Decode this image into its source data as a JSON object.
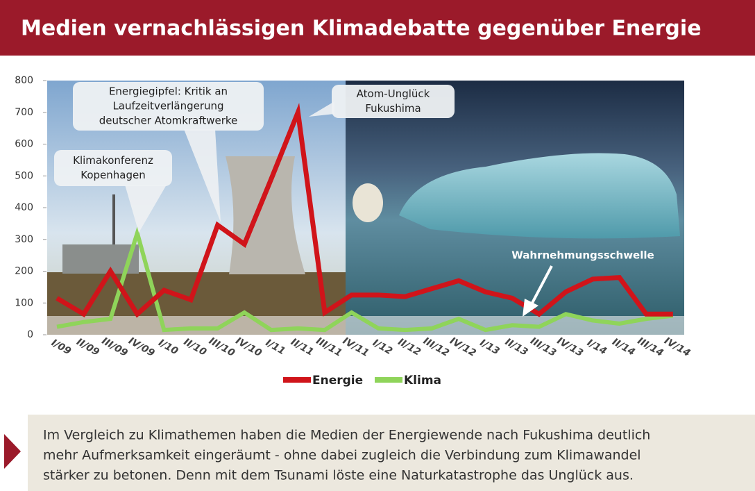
{
  "header": {
    "title": "Medien vernachlässigen Klimadebatte gegenüber Energie"
  },
  "chart_data": {
    "type": "line",
    "categories": [
      "I/09",
      "II/09",
      "III/09",
      "IV/09",
      "I/10",
      "II/10",
      "III/10",
      "IV/10",
      "I/11",
      "II/11",
      "III/11",
      "IV/11",
      "I/12",
      "II/12",
      "III/12",
      "IV/12",
      "I/13",
      "II/13",
      "III/13",
      "IV/13",
      "I/14",
      "II/14",
      "III/14",
      "IV/14"
    ],
    "series": [
      {
        "name": "Energie",
        "color": "#d0141a",
        "values": [
          115,
          65,
          200,
          65,
          140,
          110,
          345,
          285,
          490,
          700,
          70,
          125,
          125,
          120,
          145,
          170,
          135,
          115,
          65,
          135,
          175,
          180,
          65,
          65
        ]
      },
      {
        "name": "Klima",
        "color": "#8fd45a",
        "values": [
          25,
          40,
          50,
          320,
          15,
          20,
          20,
          70,
          15,
          20,
          15,
          70,
          20,
          15,
          20,
          50,
          15,
          30,
          25,
          65,
          45,
          35,
          50,
          60
        ]
      }
    ],
    "ylim": [
      0,
      800
    ],
    "yticks": [
      0,
      100,
      200,
      300,
      400,
      500,
      600,
      700,
      800
    ],
    "annotations": [
      {
        "lines": [
          "Klimakonferenz",
          "Kopenhagen"
        ]
      },
      {
        "lines": [
          "Energiegipfel: Kritik an",
          "Laufzeitverlängerung",
          "deutscher Atomkraftwerke"
        ]
      },
      {
        "lines": [
          "Atom-Unglück",
          "Fukushima"
        ]
      },
      {
        "lines": [
          "Wahrnehmungsschwelle"
        ]
      }
    ]
  },
  "summary": {
    "lines": [
      "Im Vergleich zu Klimathemen haben die Medien der Energiewende nach Fukushima deutlich",
      "mehr Aufmerksamkeit eingeräumt - ohne dabei zugleich die Verbindung zum Klimawandel",
      "stärker zu betonen. Denn mit dem Tsunami löste eine Naturkatastrophe das Unglück aus."
    ]
  }
}
